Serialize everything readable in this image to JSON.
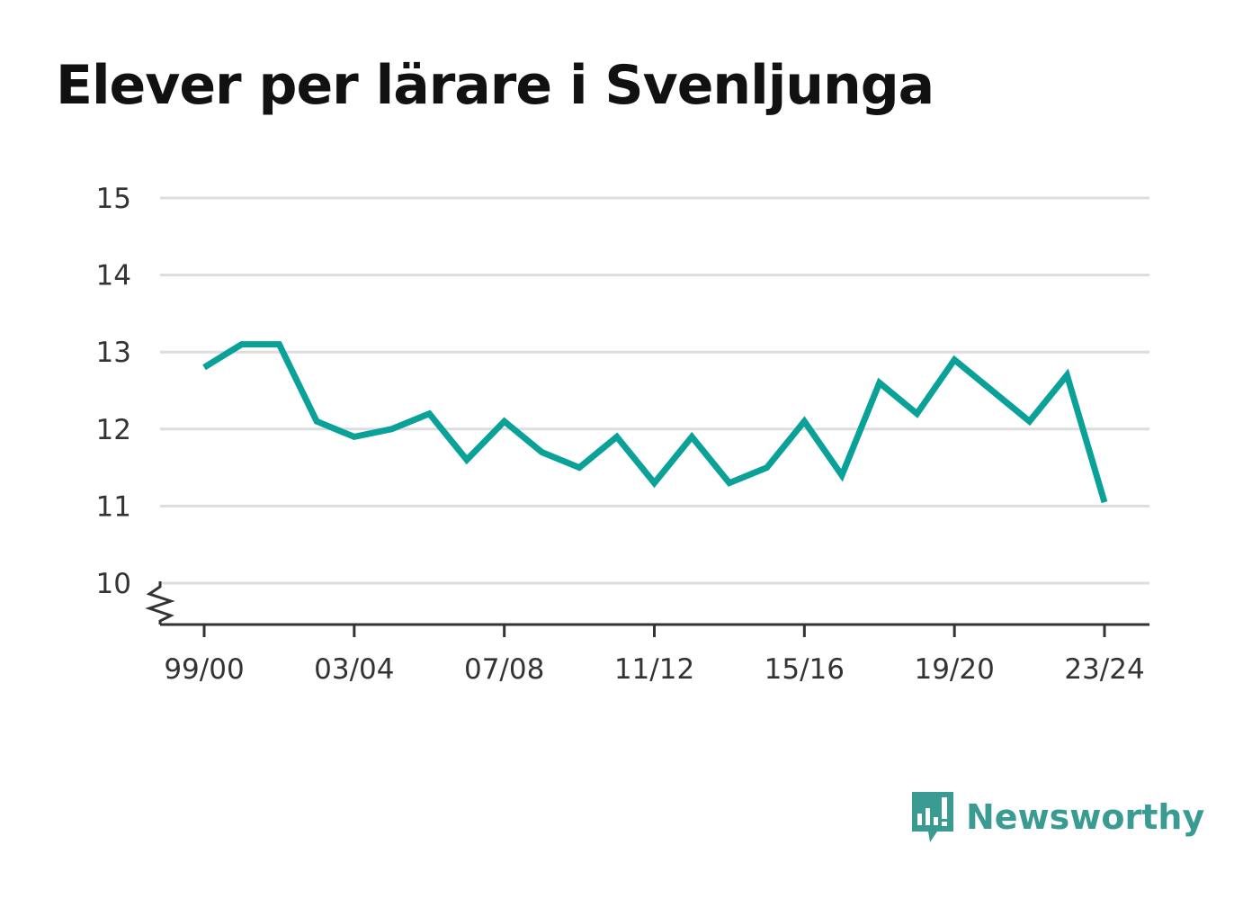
{
  "chart_data": {
    "type": "line",
    "title": "Elever per lärare i Svenljunga",
    "xlabel": "",
    "ylabel": "",
    "x": [
      "99/00",
      "00/01",
      "01/02",
      "02/03",
      "03/04",
      "04/05",
      "05/06",
      "06/07",
      "07/08",
      "08/09",
      "09/10",
      "10/11",
      "11/12",
      "12/13",
      "13/14",
      "14/15",
      "15/16",
      "16/17",
      "17/18",
      "18/19",
      "19/20",
      "20/21",
      "21/22",
      "22/23",
      "23/24"
    ],
    "x_tick_labels": [
      "99/00",
      "03/04",
      "07/08",
      "11/12",
      "15/16",
      "19/20",
      "23/24"
    ],
    "series": [
      {
        "values": [
          12.8,
          13.1,
          13.1,
          12.1,
          11.9,
          12.0,
          12.2,
          11.6,
          12.1,
          11.7,
          11.5,
          11.9,
          11.3,
          11.9,
          11.3,
          11.5,
          12.1,
          11.4,
          12.6,
          12.2,
          12.9,
          12.5,
          12.1,
          12.7,
          11.05
        ]
      }
    ],
    "y_ticks": [
      10,
      11,
      12,
      13,
      14,
      15
    ],
    "ylim": [
      9.45,
      15
    ],
    "y_axis_break": true,
    "grid": true,
    "line_color": "#0aa298"
  },
  "brand": {
    "name": "Newsworthy",
    "color": "#3a9b93"
  }
}
